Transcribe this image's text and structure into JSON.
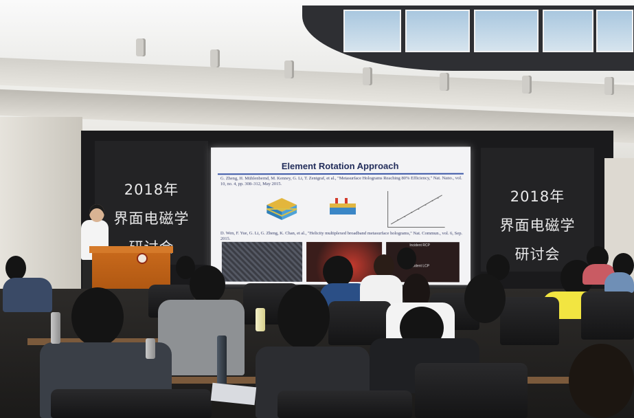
{
  "banners": {
    "left": {
      "year": "2018年",
      "line2": "界面电磁学",
      "line3": "研讨会"
    },
    "right": {
      "year": "2018年",
      "line2": "界面电磁学",
      "line3": "研讨会"
    }
  },
  "slide": {
    "title": "Element Rotation Approach",
    "ref1": "G. Zheng, H. Mühlenbernd, M. Kenney, G. Li, T. Zentgraf, et al., \"Metasurface Holograms Reaching 80% Efficiency,\" Nat. Nano., vol. 10, no. 4, pp. 308–312, May 2015.",
    "ref2": "D. Wen, F. Yue, G. Li, G. Zheng, K. Chan, et al., \"Helicity multiplexed broadband metasurface holograms,\" Nat. Commun., vol. 6, Sep. 2015.",
    "panel_label_1": "Incident RCP",
    "panel_label_2": "Incident LCP"
  },
  "colors": {
    "slide_title": "#1f2a58",
    "lectern": "#c96a1c",
    "banner_bg": "#232325",
    "banner_text": "#e9e9ea"
  }
}
